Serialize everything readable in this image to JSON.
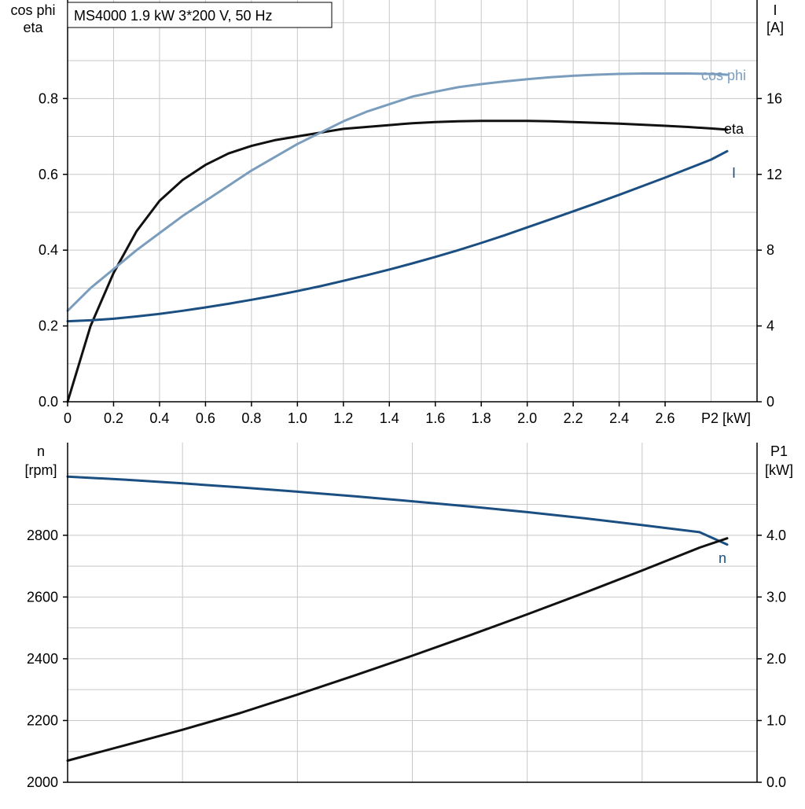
{
  "title": "MS4000   1.9 kW   3*200 V, 50 Hz",
  "colors": {
    "eta": "#111111",
    "cos_phi": "#7b9dbd",
    "current": "#1b4f82",
    "speed": "#1b4f82",
    "p1": "#111111",
    "grid": "#c8c8c8"
  },
  "chart_data": [
    {
      "type": "line",
      "x": [
        0,
        0.1,
        0.2,
        0.3,
        0.4,
        0.5,
        0.6,
        0.7,
        0.8,
        0.9,
        1.0,
        1.1,
        1.2,
        1.3,
        1.4,
        1.5,
        1.6,
        1.7,
        1.8,
        1.9,
        2.0,
        2.1,
        2.2,
        2.3,
        2.4,
        2.5,
        2.6,
        2.7,
        2.8,
        2.87
      ],
      "xlim": [
        0,
        3.0
      ],
      "x_ticks": [
        "0",
        "0.2",
        "0.4",
        "0.6",
        "0.8",
        "1.0",
        "1.2",
        "1.4",
        "1.6",
        "1.8",
        "2.0",
        "2.2",
        "2.4",
        "2.6"
      ],
      "x_tick_values": [
        0,
        0.2,
        0.4,
        0.6,
        0.8,
        1.0,
        1.2,
        1.4,
        1.6,
        1.8,
        2.0,
        2.2,
        2.4,
        2.6
      ],
      "xlabel": "P2 [kW]",
      "y_left": {
        "label_line1": "cos phi",
        "label_line2": "eta",
        "lim": [
          0,
          1.06
        ],
        "ticks": [
          "0.0",
          "0.2",
          "0.4",
          "0.6",
          "0.8"
        ],
        "tick_values": [
          0,
          0.2,
          0.4,
          0.6,
          0.8
        ]
      },
      "y_right": {
        "label_line1": "I",
        "label_line2": "[A]",
        "lim": [
          0,
          21.2
        ],
        "ticks": [
          "0",
          "4",
          "8",
          "12",
          "16"
        ],
        "tick_values": [
          0,
          4,
          8,
          12,
          16
        ]
      },
      "grid": true,
      "series": [
        {
          "name": "eta",
          "axis": "left",
          "color_key": "eta",
          "values": [
            0.0,
            0.2,
            0.34,
            0.45,
            0.53,
            0.585,
            0.625,
            0.655,
            0.675,
            0.69,
            0.7,
            0.71,
            0.72,
            0.725,
            0.73,
            0.735,
            0.738,
            0.74,
            0.741,
            0.741,
            0.741,
            0.74,
            0.738,
            0.736,
            0.734,
            0.731,
            0.728,
            0.725,
            0.721,
            0.718
          ]
        },
        {
          "name": "cos phi",
          "axis": "left",
          "color_key": "cos_phi",
          "values": [
            0.24,
            0.3,
            0.35,
            0.4,
            0.445,
            0.49,
            0.53,
            0.57,
            0.61,
            0.645,
            0.68,
            0.71,
            0.74,
            0.765,
            0.785,
            0.805,
            0.818,
            0.83,
            0.838,
            0.845,
            0.851,
            0.856,
            0.86,
            0.863,
            0.865,
            0.866,
            0.866,
            0.866,
            0.865,
            0.863
          ]
        },
        {
          "name": "I",
          "axis": "right",
          "color_key": "current",
          "values": [
            4.25,
            4.3,
            4.38,
            4.5,
            4.64,
            4.8,
            4.98,
            5.17,
            5.38,
            5.6,
            5.84,
            6.1,
            6.38,
            6.67,
            6.98,
            7.3,
            7.64,
            8.0,
            8.38,
            8.78,
            9.2,
            9.62,
            10.05,
            10.48,
            10.92,
            11.37,
            11.83,
            12.3,
            12.78,
            13.22
          ]
        }
      ]
    },
    {
      "type": "line",
      "x": [
        0,
        0.25,
        0.5,
        0.75,
        1.0,
        1.25,
        1.5,
        1.75,
        2.0,
        2.25,
        2.5,
        2.75,
        2.87
      ],
      "xlim": [
        0,
        3.0
      ],
      "y_left": {
        "label_line1": "n",
        "label_line2": "[rpm]",
        "lim": [
          2000,
          3100
        ],
        "ticks": [
          "2000",
          "2200",
          "2400",
          "2600",
          "2800"
        ],
        "tick_values": [
          2000,
          2200,
          2400,
          2600,
          2800
        ]
      },
      "y_right": {
        "label_line1": "P1",
        "label_line2": "[kW]",
        "lim": [
          0,
          5.5
        ],
        "ticks": [
          "0.0",
          "1.0",
          "2.0",
          "3.0",
          "4.0"
        ],
        "tick_values": [
          0,
          1,
          2,
          3,
          4
        ]
      },
      "grid": true,
      "series": [
        {
          "name": "n",
          "axis": "left",
          "color_key": "speed",
          "values": [
            2990,
            2980,
            2968,
            2955,
            2941,
            2926,
            2910,
            2893,
            2875,
            2855,
            2833,
            2810,
            2770
          ]
        },
        {
          "axis": "right",
          "color_key": "p1",
          "values": [
            0.35,
            0.6,
            0.85,
            1.12,
            1.42,
            1.73,
            2.05,
            2.38,
            2.72,
            3.07,
            3.43,
            3.8,
            3.95
          ]
        }
      ]
    }
  ]
}
